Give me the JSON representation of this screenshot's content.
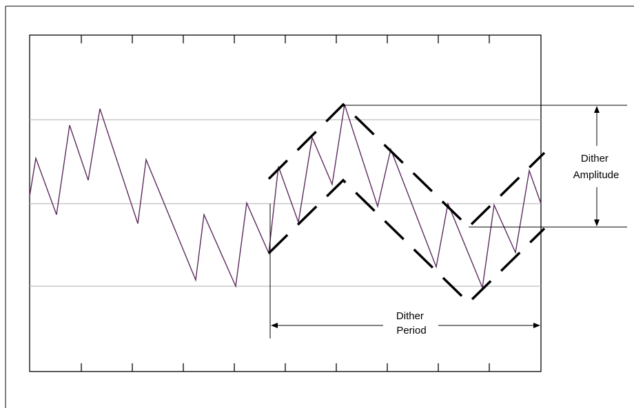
{
  "annotations": {
    "amplitude_line1": "Dither",
    "amplitude_line2": "Amplitude",
    "period_line1": "Dither",
    "period_line2": "Period"
  },
  "colors": {
    "waveform": "#5b2a5c",
    "grid": "#bdbdbd",
    "frame": "#000000"
  }
}
